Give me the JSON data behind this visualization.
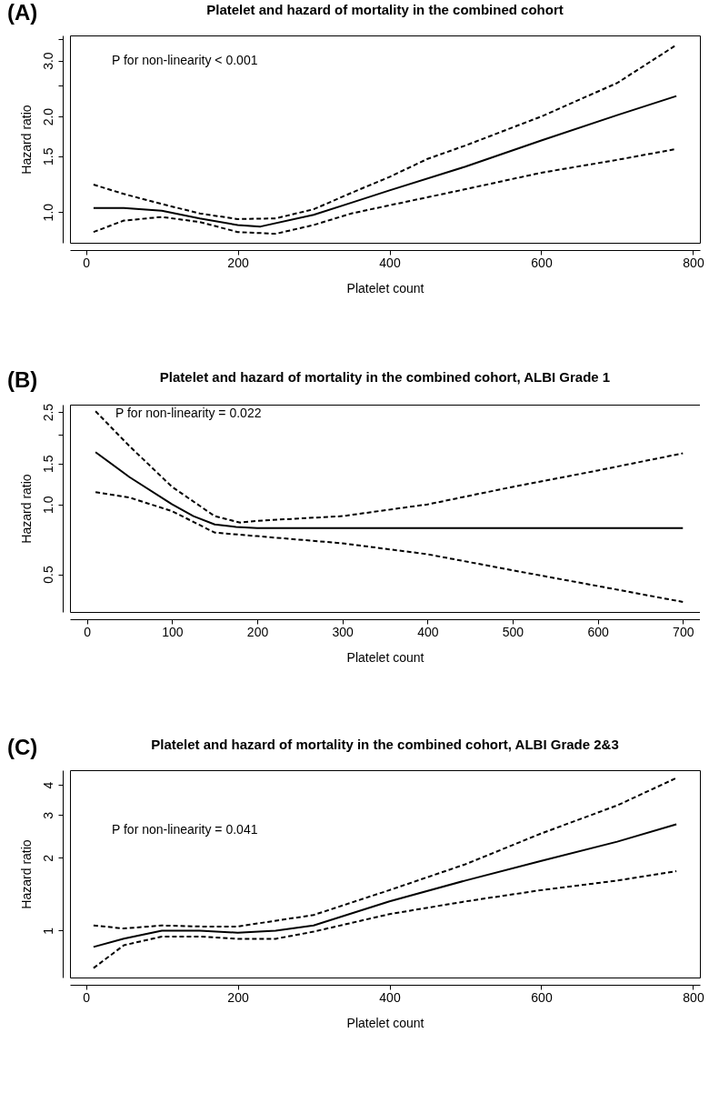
{
  "chart_data": [
    {
      "type": "line",
      "title": "Platelet and hazard of mortality in the combined cohort",
      "xlabel": "Platelet count",
      "ylabel": "Hazard ratio",
      "annotations": [
        "(A)",
        "P for non-linearity < 0.001"
      ],
      "log": true,
      "grid": false,
      "marker": "none",
      "xlim": [
        -21,
        809
      ],
      "xticks": [
        0,
        200,
        400,
        600,
        800
      ],
      "ylim": [
        0.8,
        3.6
      ],
      "yticks": [
        {
          "value": 1,
          "label": "1.0"
        },
        {
          "value": 1.5,
          "label": "1.5"
        },
        {
          "value": 2,
          "label": "2.0"
        },
        {
          "value": 2.5,
          "label": null
        },
        {
          "value": 3,
          "label": "3.0"
        },
        {
          "value": 3.5,
          "label": null
        }
      ],
      "series": [
        {
          "color": "#000000",
          "line_style": "solid",
          "x": [
            10,
            50,
            100,
            150,
            200,
            230,
            300,
            350,
            400,
            500,
            600,
            700,
            778
          ],
          "values": [
            1.03,
            1.03,
            1.01,
            0.955,
            0.91,
            0.9,
            0.98,
            1.07,
            1.17,
            1.39,
            1.68,
            2.02,
            2.32
          ]
        },
        {
          "color": "#000000",
          "line_style": "dashed",
          "x": [
            10,
            50,
            100,
            150,
            200,
            250,
            300,
            350,
            400,
            450,
            500,
            600,
            700,
            778
          ],
          "values": [
            1.22,
            1.14,
            1.06,
            0.99,
            0.95,
            0.955,
            1.02,
            1.15,
            1.29,
            1.47,
            1.62,
            2.0,
            2.55,
            3.36
          ]
        },
        {
          "color": "#000000",
          "line_style": "dashed",
          "x": [
            10,
            50,
            100,
            150,
            200,
            250,
            300,
            350,
            400,
            500,
            600,
            700,
            778
          ],
          "values": [
            0.865,
            0.94,
            0.965,
            0.93,
            0.865,
            0.854,
            0.91,
            0.99,
            1.05,
            1.18,
            1.33,
            1.46,
            1.58
          ]
        }
      ]
    },
    {
      "type": "line",
      "title": "Platelet and hazard of mortality in the combined cohort, ALBI Grade 1",
      "xlabel": "Platelet count",
      "ylabel": "Hazard ratio",
      "annotations": [
        "(B)",
        "P for non-linearity = 0.022"
      ],
      "log": true,
      "grid": false,
      "marker": "none",
      "xlim": [
        -20,
        720
      ],
      "xticks": [
        0,
        100,
        200,
        300,
        400,
        500,
        600,
        700
      ],
      "ylim": [
        0.344,
        2.69
      ],
      "yticks": [
        {
          "value": 0.5,
          "label": "0.5"
        },
        {
          "value": 1,
          "label": "1.0"
        },
        {
          "value": 1.5,
          "label": "1.5"
        },
        {
          "value": 2,
          "label": null
        },
        {
          "value": 2.5,
          "label": "2.5"
        }
      ],
      "series": [
        {
          "color": "#000000",
          "line_style": "solid",
          "x": [
            10,
            50,
            100,
            125,
            150,
            175,
            200,
            700
          ],
          "values": [
            1.68,
            1.31,
            1.0,
            0.89,
            0.82,
            0.8,
            0.79,
            0.79
          ]
        },
        {
          "color": "#000000",
          "line_style": "dashed",
          "x": [
            10,
            50,
            100,
            150,
            180,
            200,
            300,
            400,
            500,
            600,
            700
          ],
          "values": [
            2.52,
            1.78,
            1.19,
            0.89,
            0.835,
            0.85,
            0.89,
            1.0,
            1.19,
            1.4,
            1.66
          ]
        },
        {
          "color": "#000000",
          "line_style": "dashed",
          "x": [
            10,
            50,
            100,
            150,
            200,
            300,
            400,
            500,
            600,
            700
          ],
          "values": [
            1.13,
            1.07,
            0.935,
            0.756,
            0.73,
            0.68,
            0.61,
            0.52,
            0.445,
            0.38
          ]
        }
      ]
    },
    {
      "type": "line",
      "title": "Platelet and hazard of mortality in the combined cohort, ALBI Grade 2&3",
      "xlabel": "Platelet count",
      "ylabel": "Hazard ratio",
      "annotations": [
        "(C)",
        "P for non-linearity = 0.041"
      ],
      "log": true,
      "grid": false,
      "marker": "none",
      "xlim": [
        -21,
        809
      ],
      "xticks": [
        0,
        200,
        400,
        600,
        800
      ],
      "ylim": [
        0.64,
        4.6
      ],
      "yticks": [
        1,
        2,
        3,
        4
      ],
      "series": [
        {
          "color": "#000000",
          "line_style": "solid",
          "x": [
            10,
            50,
            100,
            150,
            200,
            250,
            300,
            400,
            500,
            600,
            700,
            778
          ],
          "values": [
            0.856,
            0.926,
            1.0,
            1.0,
            0.98,
            1.0,
            1.05,
            1.32,
            1.61,
            1.94,
            2.33,
            2.75
          ]
        },
        {
          "color": "#000000",
          "line_style": "dashed",
          "x": [
            10,
            50,
            100,
            150,
            200,
            300,
            400,
            500,
            600,
            700,
            778
          ],
          "values": [
            1.05,
            1.02,
            1.05,
            1.04,
            1.04,
            1.16,
            1.47,
            1.88,
            2.52,
            3.29,
            4.27
          ]
        },
        {
          "color": "#000000",
          "line_style": "dashed",
          "x": [
            10,
            50,
            100,
            150,
            200,
            250,
            300,
            400,
            500,
            600,
            700,
            778
          ],
          "values": [
            0.7,
            0.87,
            0.945,
            0.945,
            0.925,
            0.925,
            0.99,
            1.17,
            1.32,
            1.47,
            1.61,
            1.76
          ]
        }
      ]
    }
  ]
}
